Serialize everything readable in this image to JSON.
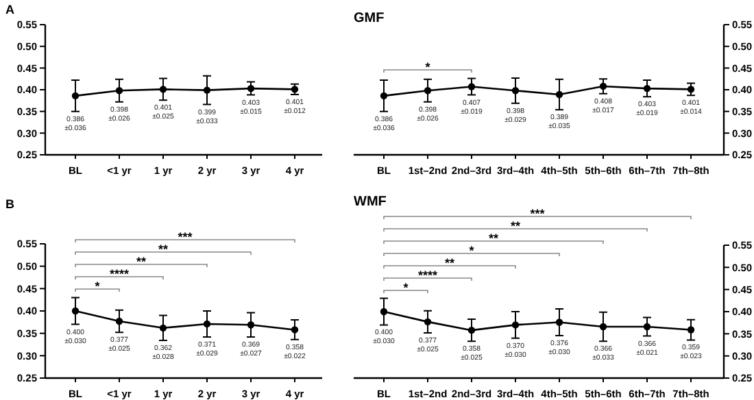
{
  "chart_data": [
    {
      "type": "line",
      "annotations": [
        "A"
      ],
      "categories": [
        "BL",
        "<1 yr",
        "1 yr",
        "2 yr",
        "3 yr",
        "4 yr"
      ],
      "marker": "circle",
      "ylim": [
        0.25,
        0.55
      ],
      "yticks": [
        0.55,
        {
          "value": 0.5,
          "label": "0.50"
        },
        0.45,
        {
          "value": 0.4,
          "label": "0.40"
        },
        0.35,
        {
          "value": 0.3,
          "label": "0.30"
        },
        0.25
      ],
      "series": [
        {
          "color": "#000000",
          "values": [
            0.386,
            0.398,
            0.401,
            0.399,
            0.403,
            0.401
          ],
          "errors": [
            0.036,
            0.026,
            0.025,
            0.033,
            0.015,
            0.012
          ],
          "value_labels": [
            "0.386\n±0.036",
            "0.398\n±0.026",
            "0.401\n±0.025",
            "0.399\n±0.033",
            "0.403\n±0.015",
            "0.401\n±0.012"
          ]
        }
      ]
    },
    {
      "type": "line",
      "title": "GMF",
      "annotations": [
        "*"
      ],
      "categories": [
        "BL",
        "1st–2nd",
        "2nd–3rd",
        "3rd–4th",
        "4th–5th",
        "5th–6th",
        "6th–7th",
        "7th–8th"
      ],
      "marker": "circle",
      "y2lim": [
        0.25,
        0.55
      ],
      "y2ticks": [
        0.55,
        {
          "value": 0.5,
          "label": "0.50"
        },
        0.45,
        {
          "value": 0.4,
          "label": "0.40"
        },
        0.35,
        {
          "value": 0.3,
          "label": "0.30"
        },
        0.25
      ],
      "series": [
        {
          "color": "#000000",
          "axis": "y2",
          "values": [
            0.386,
            0.398,
            0.407,
            0.398,
            0.389,
            0.408,
            0.403,
            0.401
          ],
          "errors": [
            0.036,
            0.026,
            0.019,
            0.029,
            0.035,
            0.017,
            0.019,
            0.014
          ],
          "value_labels": [
            "0.386\n±0.036",
            "0.398\n±0.026",
            "0.407\n±0.019",
            "0.398\n±0.029",
            "0.389\n±0.035",
            "0.408\n±0.017",
            "0.403\n±0.019",
            "0.401\n±0.014"
          ]
        }
      ]
    },
    {
      "type": "line",
      "annotations": [
        "B",
        "*",
        "****",
        "**",
        "**",
        "***"
      ],
      "categories": [
        "BL",
        "<1 yr",
        "1 yr",
        "2 yr",
        "3 yr",
        "4 yr"
      ],
      "marker": "circle",
      "ylim": [
        0.25,
        0.55
      ],
      "yticks": [
        0.55,
        {
          "value": 0.5,
          "label": "0.50"
        },
        0.45,
        {
          "value": 0.4,
          "label": "0.40"
        },
        0.35,
        {
          "value": 0.3,
          "label": "0.30"
        },
        0.25
      ],
      "series": [
        {
          "color": "#000000",
          "values": [
            0.4,
            0.377,
            0.362,
            0.371,
            0.369,
            0.358
          ],
          "errors": [
            0.03,
            0.025,
            0.028,
            0.029,
            0.027,
            0.022
          ],
          "value_labels": [
            "0.400\n±0.030",
            "0.377\n±0.025",
            "0.362\n±0.028",
            "0.371\n±0.029",
            "0.369\n±0.027",
            "0.358\n±0.022"
          ]
        }
      ]
    },
    {
      "type": "line",
      "title": "WMF",
      "annotations": [
        "*",
        "****",
        "**",
        "*",
        "**",
        "**",
        "***"
      ],
      "categories": [
        "BL",
        "1st–2nd",
        "2nd–3rd",
        "3rd–4th",
        "4th–5th",
        "5th–6th",
        "6th–7th",
        "7th–8th"
      ],
      "marker": "circle",
      "y2lim": [
        0.25,
        0.55
      ],
      "y2ticks": [
        0.55,
        {
          "value": 0.5,
          "label": "0.50"
        },
        0.45,
        {
          "value": 0.4,
          "label": "0.40"
        },
        0.35,
        {
          "value": 0.3,
          "label": "0.30"
        },
        0.25
      ],
      "series": [
        {
          "color": "#000000",
          "axis": "y2",
          "values": [
            0.4,
            0.377,
            0.358,
            0.37,
            0.376,
            0.366,
            0.366,
            0.359
          ],
          "errors": [
            0.03,
            0.025,
            0.025,
            0.03,
            0.03,
            0.033,
            0.021,
            0.023
          ],
          "value_labels": [
            "0.400\n±0.030",
            "0.377\n±0.025",
            "0.358\n±0.025",
            "0.370\n±0.030",
            "0.376\n±0.030",
            "0.366\n±0.033",
            "0.366\n±0.021",
            "0.359\n±0.023"
          ]
        }
      ]
    }
  ]
}
